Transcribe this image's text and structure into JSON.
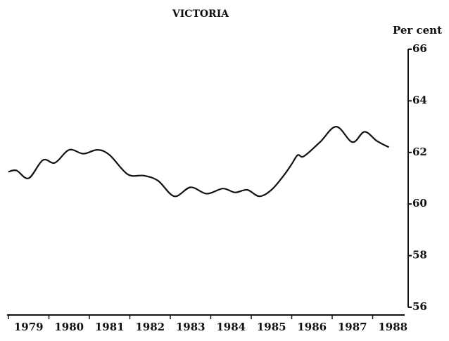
{
  "chart_data": {
    "type": "line",
    "title": "VICTORIA",
    "y_label": "Per cent",
    "x": [
      1979.0,
      1979.2,
      1979.5,
      1979.85,
      1980.15,
      1980.5,
      1980.85,
      1981.2,
      1981.5,
      1981.95,
      1982.35,
      1982.7,
      1983.1,
      1983.5,
      1983.9,
      1984.3,
      1984.6,
      1984.9,
      1985.2,
      1985.5,
      1985.8,
      1986.0,
      1986.15,
      1986.3,
      1986.7,
      1987.1,
      1987.5,
      1987.8,
      1988.1,
      1988.4
    ],
    "series": [
      {
        "name": "Victoria",
        "color": "#111111",
        "values": [
          61.25,
          61.3,
          61.0,
          61.7,
          61.6,
          62.1,
          61.95,
          62.1,
          61.9,
          61.15,
          61.1,
          60.9,
          60.3,
          60.65,
          60.4,
          60.6,
          60.45,
          60.55,
          60.3,
          60.55,
          61.1,
          61.55,
          61.9,
          61.85,
          62.4,
          63.0,
          62.4,
          62.8,
          62.45,
          62.2
        ]
      }
    ],
    "xlim": [
      1979,
      1989
    ],
    "xticks": [
      {
        "value": 1979.5,
        "label": "1979"
      },
      {
        "value": 1980.5,
        "label": "1980"
      },
      {
        "value": 1981.5,
        "label": "1981"
      },
      {
        "value": 1982.5,
        "label": "1982"
      },
      {
        "value": 1983.5,
        "label": "1983"
      },
      {
        "value": 1984.5,
        "label": "1984"
      },
      {
        "value": 1985.5,
        "label": "1985"
      },
      {
        "value": 1986.5,
        "label": "1986"
      },
      {
        "value": 1987.5,
        "label": "1987"
      },
      {
        "value": 1988.5,
        "label": "1988"
      }
    ],
    "ylim": [
      56,
      66
    ],
    "yticks": [
      56,
      58,
      60,
      62,
      64,
      66
    ],
    "y_axis_side": "right",
    "grid": false
  }
}
